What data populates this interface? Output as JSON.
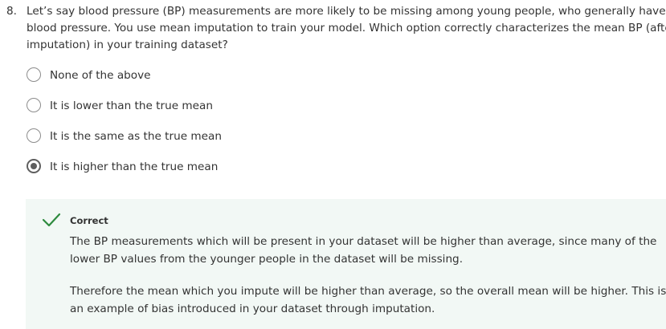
{
  "question": {
    "number": "8.",
    "lines": [
      "Let’s say blood pressure (BP) measurements are more likely to be missing among young people, who generally have lower",
      "blood pressure. You use mean imputation to train your model. Which option correctly characterizes the mean BP (after",
      "imputation) in your training dataset?"
    ]
  },
  "options": [
    {
      "label": "None of the above",
      "selected": false
    },
    {
      "label": "It is lower than the true mean",
      "selected": false
    },
    {
      "label": "It is the same as the true mean",
      "selected": false
    },
    {
      "label": "It is higher than the true mean",
      "selected": true
    }
  ],
  "feedback": {
    "status_icon": "checkmark-icon",
    "status_color": "#2e8b3e",
    "background_color": "#f2f8f5",
    "title": "Correct",
    "paragraphs": [
      [
        "The BP measurements which will be present in your dataset will be higher than average, since many of the",
        "lower BP values from the younger people in the dataset will be missing."
      ],
      [
        "Therefore the mean which you impute will be higher than average, so the overall mean will be higher. This is",
        "an example of bias introduced in your dataset through imputation."
      ]
    ]
  }
}
